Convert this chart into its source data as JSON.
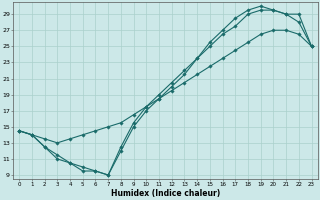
{
  "xlabel": "Humidex (Indice chaleur)",
  "background_color": "#cce8e8",
  "grid_color": "#aad0cc",
  "line_color": "#1a6b6a",
  "xlim": [
    -0.5,
    23.5
  ],
  "ylim": [
    8.5,
    30.5
  ],
  "xticks": [
    0,
    1,
    2,
    3,
    4,
    5,
    6,
    7,
    8,
    9,
    10,
    11,
    12,
    13,
    14,
    15,
    16,
    17,
    18,
    19,
    20,
    21,
    22,
    23
  ],
  "yticks": [
    9,
    11,
    13,
    15,
    17,
    19,
    21,
    23,
    25,
    27,
    29
  ],
  "line1_x": [
    0,
    1,
    2,
    3,
    4,
    5,
    6,
    7,
    8,
    9,
    10,
    11,
    12,
    13,
    14,
    15,
    16,
    17,
    18,
    19,
    20,
    21,
    22,
    23
  ],
  "line1_y": [
    14.5,
    14.0,
    12.5,
    11.0,
    10.5,
    9.5,
    9.5,
    9.0,
    12.5,
    15.5,
    17.5,
    19.0,
    20.5,
    22.0,
    23.5,
    25.0,
    26.5,
    27.5,
    29.0,
    29.5,
    29.5,
    29.0,
    29.0,
    25.0
  ],
  "line2_x": [
    0,
    1,
    2,
    3,
    4,
    5,
    6,
    7,
    8,
    9,
    10,
    11,
    12,
    13,
    14,
    15,
    16,
    17,
    18,
    19,
    20,
    21,
    22,
    23
  ],
  "line2_y": [
    14.5,
    14.0,
    12.5,
    11.5,
    10.5,
    10.0,
    9.5,
    9.0,
    12.0,
    15.0,
    17.0,
    18.5,
    20.0,
    21.5,
    23.5,
    25.5,
    27.0,
    28.5,
    29.5,
    30.0,
    29.5,
    29.0,
    28.0,
    25.0
  ],
  "line3_x": [
    0,
    1,
    2,
    3,
    4,
    5,
    6,
    7,
    8,
    9,
    10,
    11,
    12,
    13,
    14,
    15,
    16,
    17,
    18,
    19,
    20,
    21,
    22,
    23
  ],
  "line3_y": [
    14.5,
    14.0,
    13.5,
    13.0,
    13.5,
    14.0,
    14.5,
    15.0,
    15.5,
    16.5,
    17.5,
    18.5,
    19.5,
    20.5,
    21.5,
    22.5,
    23.5,
    24.5,
    25.5,
    26.5,
    27.0,
    27.0,
    26.5,
    25.0
  ]
}
